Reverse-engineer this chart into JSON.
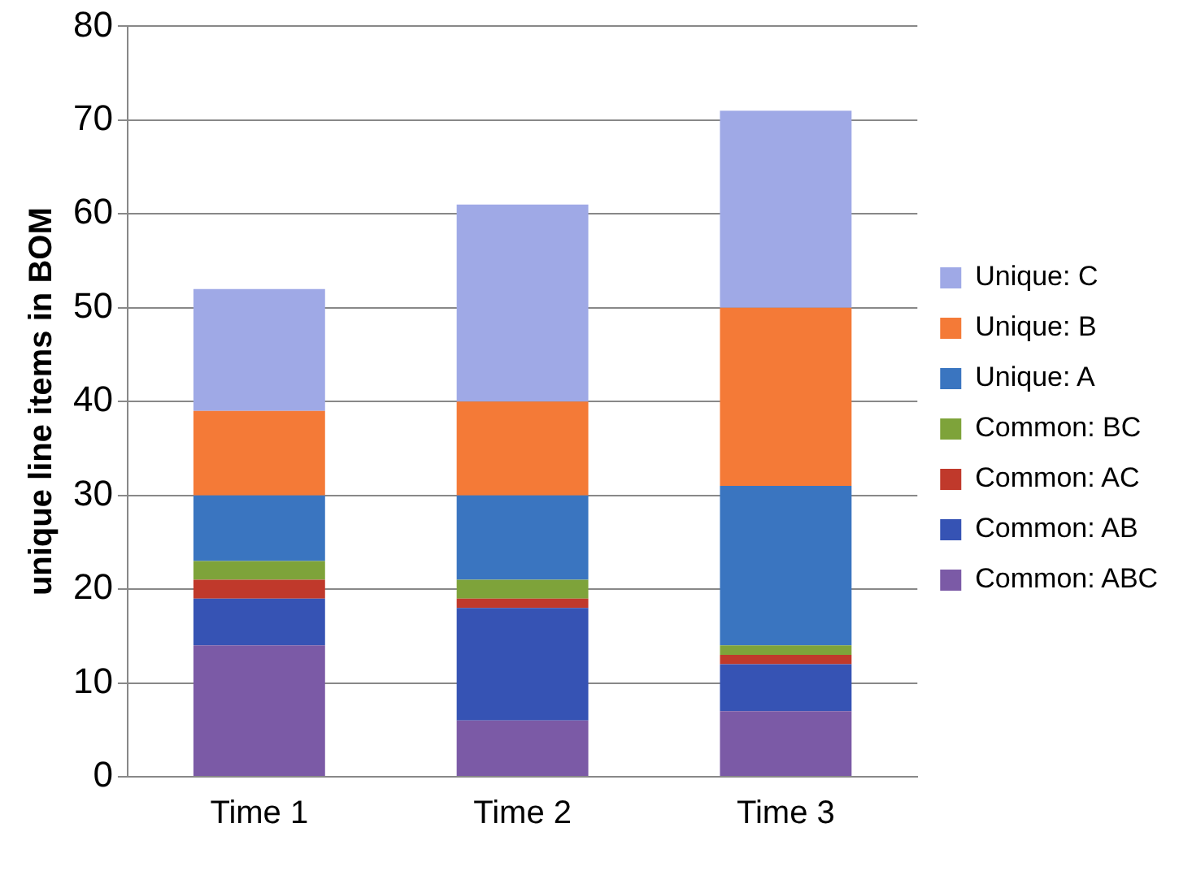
{
  "chart_data": {
    "type": "bar",
    "stacked": true,
    "ylabel": "unique line items in BOM",
    "categories": [
      "Time 1",
      "Time 2",
      "Time 3"
    ],
    "series": [
      {
        "name": "Common: ABC",
        "color": "#7b5aa6",
        "values": [
          14,
          6,
          7
        ]
      },
      {
        "name": "Common: AB",
        "color": "#3653b4",
        "values": [
          5,
          12,
          5
        ]
      },
      {
        "name": "Common: AC",
        "color": "#c0392b",
        "values": [
          2,
          1,
          1
        ]
      },
      {
        "name": "Common: BC",
        "color": "#7ea33a",
        "values": [
          2,
          2,
          1
        ]
      },
      {
        "name": "Unique: A",
        "color": "#3a75c0",
        "values": [
          7,
          9,
          17
        ]
      },
      {
        "name": "Unique: B",
        "color": "#f47a37",
        "values": [
          9,
          10,
          19
        ]
      },
      {
        "name": "Unique: C",
        "color": "#9fa9e6",
        "values": [
          13,
          21,
          21
        ]
      }
    ],
    "ylim": [
      0,
      80
    ],
    "yticks": [
      0,
      10,
      20,
      30,
      40,
      50,
      60,
      70,
      80
    ],
    "grid": "y",
    "legend": "right"
  }
}
